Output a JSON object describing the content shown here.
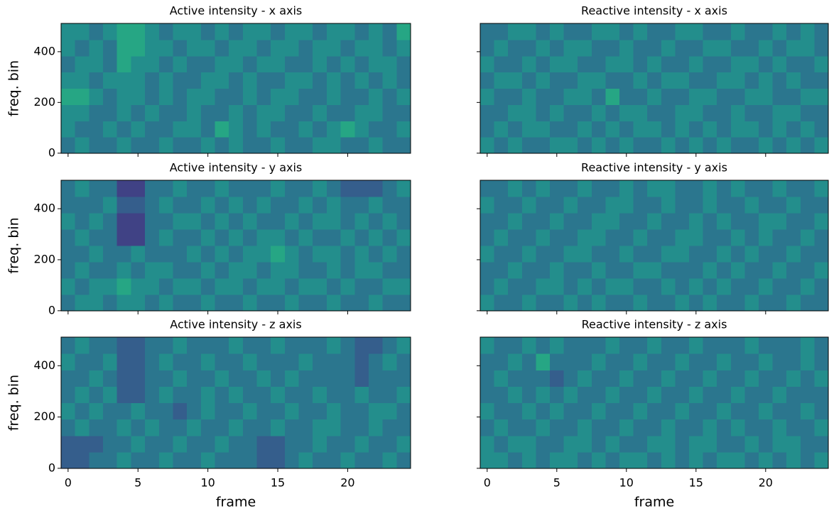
{
  "chart_data": [
    {
      "type": "heatmap",
      "title": "Active intensity - x axis",
      "ylabel": "freq. bin",
      "colormap": "viridis",
      "zlim": [
        0,
        9
      ],
      "xlim": [
        -0.5,
        24.5
      ],
      "ylim": [
        -0.5,
        511.5
      ],
      "xticks": [
        0,
        5,
        10,
        15,
        20
      ],
      "yticks": [
        0,
        200,
        400
      ],
      "z": [
        [
          4,
          5,
          4,
          4,
          5,
          4,
          4,
          5,
          4,
          4,
          5,
          4,
          5,
          4,
          4,
          5,
          4,
          4,
          5,
          5,
          4,
          4,
          5,
          4,
          4
        ],
        [
          5,
          4,
          4,
          5,
          4,
          5,
          4,
          4,
          5,
          5,
          4,
          6,
          5,
          4,
          5,
          4,
          4,
          5,
          4,
          5,
          6,
          5,
          4,
          4,
          5
        ],
        [
          5,
          5,
          4,
          4,
          5,
          4,
          5,
          4,
          4,
          5,
          4,
          4,
          5,
          4,
          5,
          5,
          4,
          4,
          5,
          4,
          4,
          5,
          5,
          4,
          4
        ],
        [
          6,
          6,
          5,
          4,
          5,
          5,
          4,
          5,
          4,
          5,
          5,
          4,
          4,
          5,
          4,
          5,
          5,
          4,
          4,
          5,
          4,
          4,
          5,
          4,
          5
        ],
        [
          5,
          5,
          4,
          5,
          5,
          5,
          4,
          5,
          4,
          4,
          5,
          5,
          4,
          5,
          4,
          4,
          5,
          5,
          4,
          5,
          4,
          5,
          4,
          5,
          4
        ],
        [
          4,
          5,
          5,
          4,
          6,
          5,
          5,
          4,
          5,
          4,
          4,
          5,
          5,
          4,
          5,
          5,
          4,
          4,
          5,
          4,
          5,
          4,
          5,
          5,
          4
        ],
        [
          5,
          4,
          5,
          4,
          6,
          6,
          5,
          5,
          4,
          5,
          5,
          4,
          5,
          5,
          4,
          5,
          5,
          4,
          5,
          5,
          4,
          5,
          5,
          4,
          5
        ],
        [
          5,
          5,
          4,
          5,
          6,
          6,
          5,
          4,
          5,
          5,
          4,
          5,
          4,
          5,
          5,
          4,
          5,
          5,
          4,
          5,
          5,
          4,
          5,
          4,
          6
        ]
      ]
    },
    {
      "type": "heatmap",
      "title": "Reactive intensity - x axis",
      "colormap": "viridis",
      "zlim": [
        0,
        9
      ],
      "xlim": [
        -0.5,
        24.5
      ],
      "ylim": [
        -0.5,
        511.5
      ],
      "xticks": [
        0,
        5,
        10,
        15,
        20
      ],
      "yticks": [
        0,
        200,
        400
      ],
      "z": [
        [
          5,
          4,
          5,
          4,
          4,
          5,
          5,
          4,
          5,
          4,
          5,
          4,
          4,
          5,
          4,
          5,
          4,
          5,
          4,
          4,
          5,
          4,
          5,
          4,
          5
        ],
        [
          4,
          5,
          4,
          5,
          5,
          4,
          4,
          5,
          4,
          5,
          4,
          5,
          5,
          4,
          5,
          4,
          5,
          4,
          5,
          5,
          4,
          5,
          4,
          5,
          4
        ],
        [
          4,
          4,
          5,
          5,
          4,
          5,
          4,
          4,
          5,
          4,
          5,
          5,
          4,
          4,
          5,
          5,
          4,
          4,
          5,
          4,
          4,
          5,
          5,
          4,
          4
        ],
        [
          5,
          4,
          4,
          5,
          4,
          4,
          5,
          5,
          4,
          6,
          4,
          4,
          5,
          4,
          4,
          5,
          5,
          4,
          4,
          5,
          5,
          4,
          4,
          5,
          5
        ],
        [
          4,
          5,
          5,
          4,
          5,
          4,
          4,
          5,
          5,
          4,
          4,
          5,
          4,
          5,
          5,
          4,
          4,
          5,
          5,
          4,
          5,
          4,
          5,
          4,
          4
        ],
        [
          5,
          4,
          4,
          5,
          4,
          5,
          5,
          4,
          4,
          5,
          5,
          4,
          5,
          4,
          4,
          5,
          4,
          4,
          5,
          5,
          4,
          5,
          4,
          4,
          5
        ],
        [
          4,
          5,
          4,
          4,
          5,
          4,
          5,
          5,
          4,
          4,
          5,
          4,
          4,
          5,
          4,
          4,
          5,
          5,
          4,
          4,
          5,
          4,
          5,
          5,
          4
        ],
        [
          4,
          4,
          5,
          5,
          4,
          5,
          4,
          4,
          5,
          5,
          4,
          5,
          4,
          4,
          5,
          5,
          4,
          4,
          5,
          4,
          4,
          5,
          4,
          5,
          4
        ]
      ]
    },
    {
      "type": "heatmap",
      "title": "Active intensity - y axis",
      "ylabel": "freq. bin",
      "colormap": "viridis",
      "zlim": [
        0,
        9
      ],
      "xlim": [
        -0.5,
        24.5
      ],
      "ylim": [
        -0.5,
        511.5
      ],
      "xticks": [
        0,
        5,
        10,
        15,
        20
      ],
      "yticks": [
        0,
        200,
        400
      ],
      "z": [
        [
          4,
          5,
          5,
          4,
          5,
          5,
          4,
          5,
          4,
          4,
          5,
          4,
          4,
          5,
          4,
          4,
          5,
          4,
          4,
          5,
          4,
          4,
          5,
          4,
          4
        ],
        [
          5,
          4,
          5,
          5,
          6,
          5,
          5,
          4,
          5,
          5,
          4,
          5,
          5,
          4,
          5,
          5,
          4,
          5,
          5,
          4,
          5,
          4,
          4,
          5,
          5
        ],
        [
          4,
          5,
          4,
          4,
          5,
          4,
          5,
          5,
          4,
          4,
          5,
          4,
          5,
          5,
          4,
          5,
          5,
          4,
          4,
          5,
          4,
          5,
          5,
          4,
          4
        ],
        [
          4,
          4,
          5,
          4,
          4,
          5,
          4,
          4,
          4,
          5,
          4,
          5,
          4,
          5,
          5,
          6,
          5,
          4,
          5,
          5,
          4,
          5,
          4,
          5,
          4
        ],
        [
          4,
          5,
          4,
          4,
          2,
          2,
          4,
          5,
          4,
          4,
          5,
          4,
          5,
          4,
          5,
          5,
          4,
          5,
          4,
          4,
          5,
          4,
          5,
          4,
          5
        ],
        [
          5,
          4,
          5,
          4,
          2,
          2,
          4,
          4,
          5,
          5,
          4,
          5,
          4,
          5,
          4,
          4,
          5,
          4,
          5,
          5,
          4,
          5,
          4,
          5,
          4
        ],
        [
          4,
          4,
          4,
          5,
          3,
          3,
          4,
          5,
          4,
          4,
          5,
          4,
          5,
          4,
          5,
          4,
          4,
          5,
          4,
          5,
          4,
          4,
          5,
          4,
          4
        ],
        [
          4,
          5,
          4,
          4,
          2,
          2,
          4,
          4,
          5,
          4,
          4,
          5,
          4,
          4,
          4,
          5,
          4,
          4,
          5,
          4,
          3,
          3,
          3,
          4,
          5
        ]
      ]
    },
    {
      "type": "heatmap",
      "title": "Reactive intensity - y axis",
      "colormap": "viridis",
      "zlim": [
        0,
        9
      ],
      "xlim": [
        -0.5,
        24.5
      ],
      "ylim": [
        -0.5,
        511.5
      ],
      "xticks": [
        0,
        5,
        10,
        15,
        20
      ],
      "yticks": [
        0,
        200,
        400
      ],
      "z": [
        [
          5,
          4,
          4,
          5,
          4,
          4,
          5,
          4,
          5,
          4,
          4,
          5,
          4,
          4,
          5,
          4,
          5,
          4,
          4,
          5,
          4,
          4,
          5,
          4,
          4
        ],
        [
          4,
          5,
          4,
          4,
          5,
          5,
          4,
          5,
          4,
          5,
          5,
          4,
          4,
          5,
          4,
          5,
          4,
          5,
          4,
          4,
          5,
          4,
          4,
          5,
          4
        ],
        [
          4,
          4,
          5,
          4,
          4,
          5,
          4,
          4,
          5,
          4,
          4,
          5,
          5,
          4,
          4,
          4,
          5,
          4,
          5,
          4,
          4,
          5,
          4,
          4,
          5
        ],
        [
          5,
          4,
          4,
          5,
          4,
          4,
          5,
          5,
          4,
          4,
          5,
          4,
          4,
          5,
          5,
          4,
          4,
          5,
          4,
          5,
          4,
          4,
          5,
          4,
          4
        ],
        [
          4,
          5,
          4,
          4,
          5,
          4,
          4,
          5,
          5,
          4,
          4,
          5,
          4,
          4,
          5,
          5,
          4,
          4,
          5,
          4,
          5,
          4,
          4,
          5,
          4
        ],
        [
          4,
          4,
          5,
          4,
          4,
          5,
          4,
          4,
          5,
          5,
          4,
          4,
          5,
          4,
          4,
          5,
          4,
          5,
          4,
          4,
          5,
          5,
          4,
          4,
          5
        ],
        [
          5,
          4,
          4,
          5,
          4,
          4,
          5,
          4,
          4,
          5,
          5,
          4,
          4,
          5,
          4,
          4,
          5,
          4,
          4,
          5,
          4,
          4,
          5,
          4,
          4
        ],
        [
          4,
          4,
          5,
          4,
          5,
          4,
          4,
          5,
          4,
          4,
          5,
          4,
          5,
          5,
          4,
          4,
          5,
          4,
          5,
          4,
          4,
          5,
          4,
          4,
          5
        ]
      ]
    },
    {
      "type": "heatmap",
      "title": "Active intensity - z axis",
      "ylabel": "freq. bin",
      "xlabel": "frame",
      "colormap": "viridis",
      "zlim": [
        0,
        9
      ],
      "xlim": [
        -0.5,
        24.5
      ],
      "ylim": [
        -0.5,
        511.5
      ],
      "xticks": [
        0,
        5,
        10,
        15,
        20
      ],
      "yticks": [
        0,
        200,
        400
      ],
      "z": [
        [
          3,
          3,
          4,
          4,
          5,
          4,
          4,
          5,
          4,
          4,
          5,
          4,
          4,
          4,
          3,
          3,
          4,
          5,
          4,
          4,
          5,
          4,
          4,
          5,
          4
        ],
        [
          3,
          3,
          3,
          4,
          4,
          5,
          4,
          4,
          5,
          4,
          4,
          5,
          4,
          4,
          3,
          3,
          4,
          4,
          5,
          4,
          4,
          5,
          4,
          4,
          5
        ],
        [
          4,
          5,
          4,
          4,
          5,
          4,
          5,
          4,
          4,
          5,
          4,
          4,
          5,
          4,
          4,
          5,
          4,
          4,
          5,
          5,
          4,
          4,
          5,
          4,
          4
        ],
        [
          5,
          4,
          5,
          4,
          4,
          5,
          4,
          4,
          3,
          4,
          5,
          4,
          4,
          5,
          4,
          4,
          5,
          4,
          4,
          5,
          4,
          4,
          5,
          5,
          4
        ],
        [
          4,
          5,
          4,
          5,
          3,
          3,
          4,
          5,
          4,
          4,
          5,
          4,
          5,
          4,
          4,
          5,
          4,
          4,
          5,
          4,
          4,
          5,
          4,
          4,
          5
        ],
        [
          4,
          4,
          5,
          4,
          3,
          3,
          4,
          4,
          5,
          4,
          4,
          5,
          4,
          4,
          5,
          4,
          5,
          4,
          4,
          4,
          4,
          3,
          4,
          4,
          4
        ],
        [
          5,
          4,
          4,
          5,
          3,
          3,
          4,
          5,
          4,
          4,
          5,
          4,
          4,
          5,
          4,
          4,
          4,
          5,
          4,
          4,
          4,
          3,
          4,
          5,
          4
        ],
        [
          4,
          5,
          4,
          4,
          3,
          3,
          4,
          4,
          5,
          4,
          4,
          4,
          5,
          4,
          4,
          5,
          4,
          4,
          4,
          5,
          4,
          3,
          3,
          4,
          5
        ]
      ]
    },
    {
      "type": "heatmap",
      "title": "Reactive intensity - z axis",
      "xlabel": "frame",
      "colormap": "viridis",
      "zlim": [
        0,
        9
      ],
      "xlim": [
        -0.5,
        24.5
      ],
      "ylim": [
        -0.5,
        511.5
      ],
      "xticks": [
        0,
        5,
        10,
        15,
        20
      ],
      "yticks": [
        0,
        200,
        400
      ],
      "z": [
        [
          5,
          5,
          4,
          5,
          4,
          5,
          5,
          4,
          5,
          4,
          5,
          5,
          4,
          5,
          4,
          5,
          4,
          5,
          5,
          4,
          5,
          4,
          5,
          4,
          5
        ],
        [
          5,
          4,
          5,
          5,
          4,
          4,
          5,
          5,
          4,
          5,
          4,
          4,
          5,
          5,
          4,
          5,
          5,
          4,
          4,
          5,
          4,
          5,
          5,
          4,
          4
        ],
        [
          4,
          5,
          4,
          4,
          5,
          4,
          4,
          5,
          4,
          4,
          5,
          4,
          4,
          5,
          4,
          4,
          5,
          4,
          5,
          4,
          4,
          5,
          4,
          4,
          5
        ],
        [
          5,
          4,
          4,
          5,
          4,
          5,
          4,
          4,
          5,
          4,
          4,
          5,
          4,
          4,
          5,
          4,
          4,
          5,
          4,
          4,
          5,
          4,
          4,
          5,
          4
        ],
        [
          4,
          4,
          5,
          4,
          5,
          4,
          5,
          4,
          4,
          5,
          4,
          4,
          5,
          4,
          4,
          5,
          4,
          4,
          5,
          4,
          4,
          5,
          4,
          4,
          4
        ],
        [
          4,
          5,
          4,
          4,
          4,
          3,
          4,
          5,
          4,
          4,
          5,
          4,
          4,
          5,
          4,
          4,
          5,
          4,
          4,
          5,
          4,
          4,
          5,
          4,
          5
        ],
        [
          4,
          4,
          5,
          4,
          6,
          4,
          4,
          4,
          5,
          4,
          4,
          5,
          4,
          4,
          5,
          4,
          4,
          5,
          4,
          4,
          5,
          4,
          4,
          5,
          4
        ],
        [
          5,
          4,
          4,
          5,
          4,
          5,
          4,
          4,
          4,
          5,
          4,
          4,
          5,
          4,
          4,
          5,
          4,
          4,
          4,
          5,
          4,
          4,
          4,
          5,
          4
        ]
      ]
    }
  ]
}
